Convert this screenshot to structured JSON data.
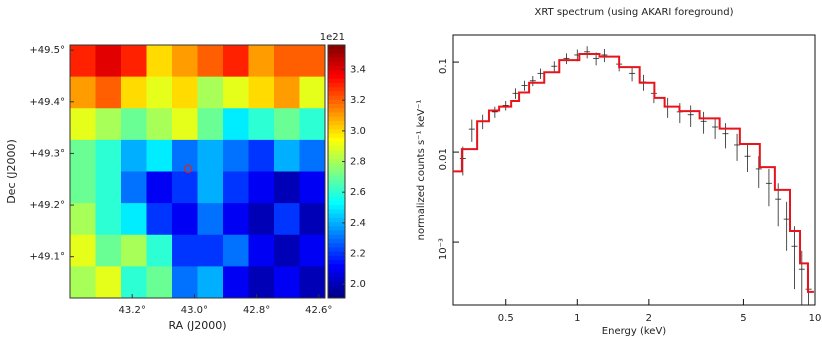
{
  "chart_data": [
    {
      "type": "heatmap",
      "x_label": "RA (J2000)",
      "y_label": "Dec (J2000)",
      "xlim": [
        43.4,
        42.58
      ],
      "ylim": [
        49.02,
        49.51
      ],
      "xticks": [
        {
          "value": 43.2,
          "label": "43.2°"
        },
        {
          "value": 43.0,
          "label": "43.0°"
        },
        {
          "value": 42.8,
          "label": "42.8°"
        },
        {
          "value": 42.6,
          "label": "42.6°"
        }
      ],
      "yticks": [
        {
          "value": 49.1,
          "label": "+49.1°"
        },
        {
          "value": 49.2,
          "label": "+49.2°"
        },
        {
          "value": 49.3,
          "label": "+49.3°"
        },
        {
          "value": 49.4,
          "label": "+49.4°"
        },
        {
          "value": 49.5,
          "label": "+49.5°"
        }
      ],
      "z": [
        [
          3.3,
          3.4,
          3.3,
          3.0,
          3.1,
          3.2,
          3.3,
          3.1,
          3.2,
          3.2
        ],
        [
          3.1,
          3.2,
          3.0,
          2.9,
          3.0,
          2.8,
          2.9,
          3.0,
          3.1,
          2.9
        ],
        [
          2.9,
          2.8,
          2.7,
          2.8,
          2.9,
          2.7,
          2.5,
          2.6,
          2.7,
          2.6
        ],
        [
          2.7,
          2.6,
          2.4,
          2.5,
          2.3,
          2.4,
          2.3,
          2.2,
          2.4,
          2.3
        ],
        [
          2.7,
          2.6,
          2.3,
          2.1,
          2.2,
          2.4,
          2.2,
          2.1,
          2.0,
          2.1
        ],
        [
          2.8,
          2.6,
          2.5,
          2.2,
          2.1,
          2.3,
          2.1,
          2.0,
          2.2,
          2.0
        ],
        [
          2.9,
          2.7,
          2.8,
          2.6,
          2.2,
          2.2,
          2.3,
          2.1,
          2.0,
          2.1
        ],
        [
          2.8,
          2.9,
          2.6,
          2.7,
          2.3,
          2.4,
          2.1,
          2.0,
          2.1,
          2.0
        ]
      ],
      "colormap": "jet",
      "zlim": [
        1.91,
        3.56
      ],
      "zticks": [
        {
          "value": 2.0,
          "label": "2.0"
        },
        2.2,
        2.4,
        2.6,
        2.8,
        {
          "value": 3.0,
          "label": "3.0"
        },
        3.2,
        3.4
      ],
      "colorbar_offset": "1e21",
      "marker": {
        "x": 43.02,
        "y": 49.27,
        "color": "#d62728"
      }
    },
    {
      "type": "spectrum",
      "title": "XRT spectrum (using AKARI foreground)",
      "x_label": "Energy (keV)",
      "y_label": "normalized counts s⁻¹ keV⁻¹",
      "log_x": true,
      "log_y": true,
      "xlim": [
        0.3,
        10
      ],
      "ylim": [
        0.0002,
        0.2
      ],
      "xticks": [
        0.5,
        1,
        2,
        5,
        10
      ],
      "yticks": [
        {
          "value": 0.001,
          "label": "10⁻³"
        },
        0.01,
        0.1
      ],
      "data": {
        "color": "#222222",
        "x": [
          0.33,
          0.36,
          0.4,
          0.45,
          0.5,
          0.55,
          0.6,
          0.65,
          0.7,
          0.8,
          0.9,
          1.0,
          1.1,
          1.2,
          1.3,
          1.5,
          1.7,
          1.9,
          2.1,
          2.4,
          2.7,
          3.0,
          3.4,
          3.8,
          4.2,
          4.7,
          5.2,
          5.8,
          6.4,
          7.0,
          7.6,
          8.2,
          8.8,
          9.4
        ],
        "values": [
          0.0085,
          0.018,
          0.022,
          0.028,
          0.033,
          0.045,
          0.055,
          0.062,
          0.075,
          0.09,
          0.11,
          0.12,
          0.13,
          0.11,
          0.12,
          0.095,
          0.075,
          0.06,
          0.045,
          0.032,
          0.028,
          0.026,
          0.022,
          0.019,
          0.016,
          0.012,
          0.009,
          0.0065,
          0.0045,
          0.003,
          0.0018,
          0.0009,
          0.0005,
          0.0003
        ],
        "errors": [
          0.003,
          0.005,
          0.004,
          0.004,
          0.004,
          0.006,
          0.007,
          0.008,
          0.01,
          0.012,
          0.015,
          0.018,
          0.02,
          0.018,
          0.02,
          0.016,
          0.014,
          0.012,
          0.01,
          0.008,
          0.007,
          0.007,
          0.006,
          0.005,
          0.005,
          0.004,
          0.003,
          0.0025,
          0.002,
          0.0015,
          0.001,
          0.0006,
          0.0003,
          0.0002
        ]
      },
      "model": {
        "color": "#e8141c",
        "x": [
          0.3,
          0.327,
          0.379,
          0.425,
          0.469,
          0.527,
          0.569,
          0.627,
          0.726,
          0.84,
          1.02,
          1.24,
          1.5,
          1.83,
          2.11,
          2.33,
          2.69,
          3.27,
          3.97,
          4.83,
          5.86,
          6.78,
          7.85,
          8.65,
          9.34
        ],
        "values": [
          0.0061,
          0.0108,
          0.022,
          0.029,
          0.032,
          0.037,
          0.046,
          0.059,
          0.077,
          0.105,
          0.123,
          0.115,
          0.088,
          0.059,
          0.04,
          0.032,
          0.0285,
          0.0237,
          0.0182,
          0.0123,
          0.0068,
          0.0038,
          0.00133,
          0.00058,
          0.00028
        ]
      }
    }
  ]
}
